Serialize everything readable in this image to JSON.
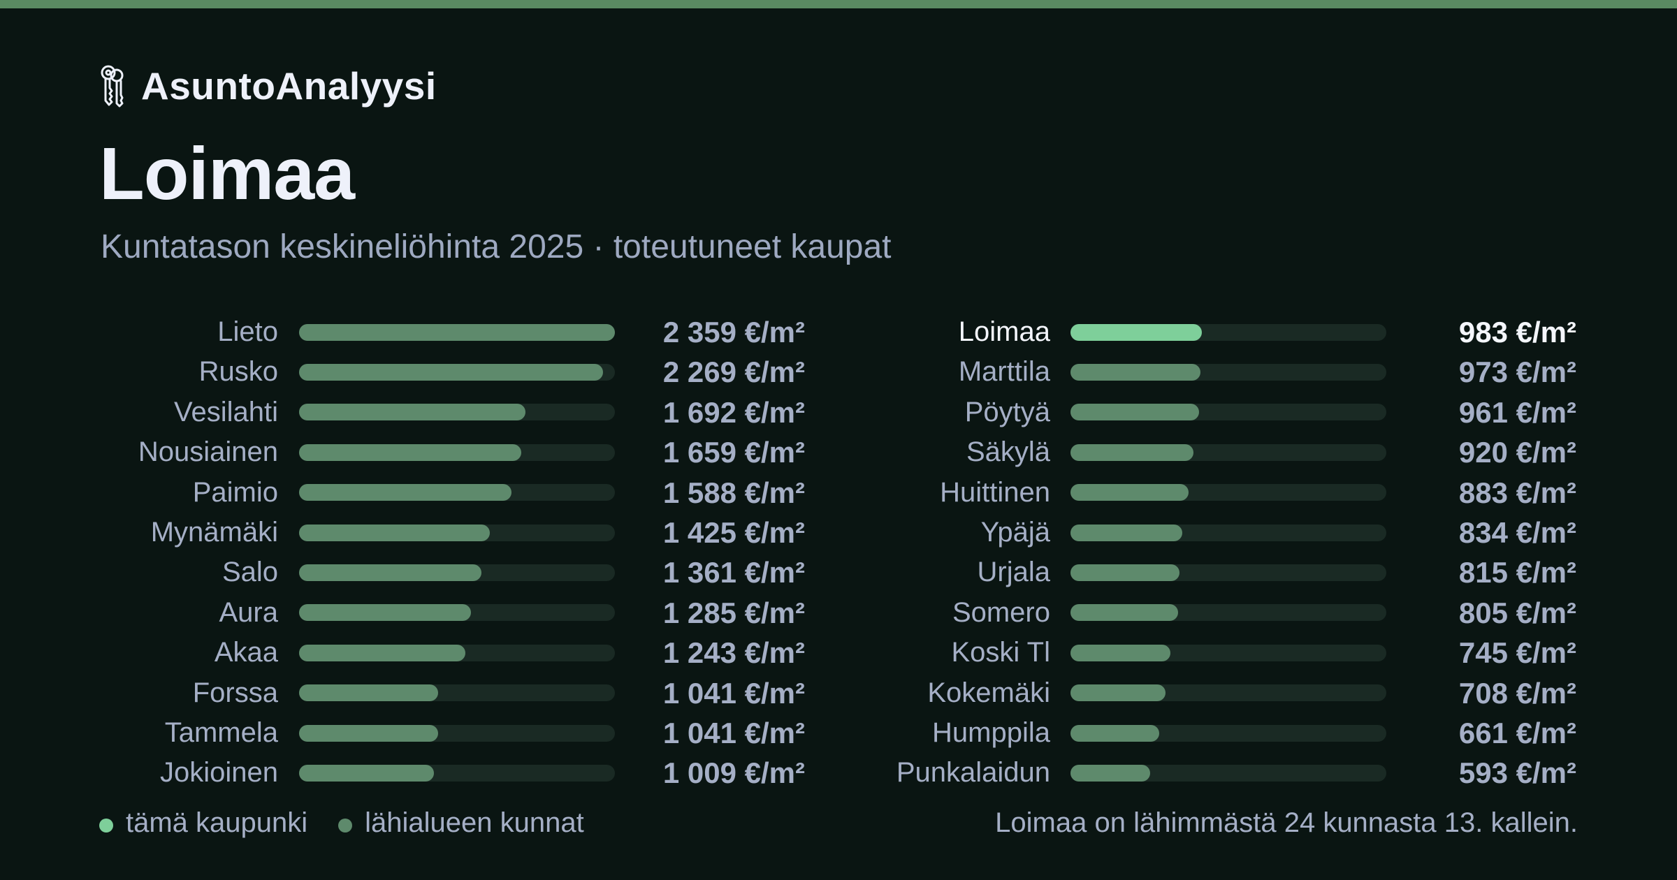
{
  "brand": {
    "name": "AsuntoAnalyysi",
    "icon": "keys-icon"
  },
  "header": {
    "title": "Loimaa",
    "subtitle": "Kuntatason keskineliöhinta 2025 · toteutuneet kaupat"
  },
  "colors": {
    "accent": "#7ecf9a",
    "bar": "#5e8a6c",
    "track": "#1a2a24",
    "background": "#0a1512",
    "topbar": "#5a8a62"
  },
  "chart_data": {
    "type": "bar",
    "orientation": "horizontal",
    "unit": "€/m²",
    "max": 2359,
    "highlight": "Loimaa",
    "columns": [
      {
        "items": [
          {
            "name": "Lieto",
            "value": 2359,
            "label": "2 359 €/m²"
          },
          {
            "name": "Rusko",
            "value": 2269,
            "label": "2 269 €/m²"
          },
          {
            "name": "Vesilahti",
            "value": 1692,
            "label": "1 692 €/m²"
          },
          {
            "name": "Nousiainen",
            "value": 1659,
            "label": "1 659 €/m²"
          },
          {
            "name": "Paimio",
            "value": 1588,
            "label": "1 588 €/m²"
          },
          {
            "name": "Mynämäki",
            "value": 1425,
            "label": "1 425 €/m²"
          },
          {
            "name": "Salo",
            "value": 1361,
            "label": "1 361 €/m²"
          },
          {
            "name": "Aura",
            "value": 1285,
            "label": "1 285 €/m²"
          },
          {
            "name": "Akaa",
            "value": 1243,
            "label": "1 243 €/m²"
          },
          {
            "name": "Forssa",
            "value": 1041,
            "label": "1 041 €/m²"
          },
          {
            "name": "Tammela",
            "value": 1041,
            "label": "1 041 €/m²"
          },
          {
            "name": "Jokioinen",
            "value": 1009,
            "label": "1 009 €/m²"
          }
        ]
      },
      {
        "items": [
          {
            "name": "Loimaa",
            "value": 983,
            "label": "983 €/m²"
          },
          {
            "name": "Marttila",
            "value": 973,
            "label": "973 €/m²"
          },
          {
            "name": "Pöytyä",
            "value": 961,
            "label": "961 €/m²"
          },
          {
            "name": "Säkylä",
            "value": 920,
            "label": "920 €/m²"
          },
          {
            "name": "Huittinen",
            "value": 883,
            "label": "883 €/m²"
          },
          {
            "name": "Ypäjä",
            "value": 834,
            "label": "834 €/m²"
          },
          {
            "name": "Urjala",
            "value": 815,
            "label": "815 €/m²"
          },
          {
            "name": "Somero",
            "value": 805,
            "label": "805 €/m²"
          },
          {
            "name": "Koski Tl",
            "value": 745,
            "label": "745 €/m²"
          },
          {
            "name": "Kokemäki",
            "value": 708,
            "label": "708 €/m²"
          },
          {
            "name": "Humppila",
            "value": 661,
            "label": "661 €/m²"
          },
          {
            "name": "Punkalaidun",
            "value": 593,
            "label": "593 €/m²"
          }
        ]
      }
    ],
    "legend": [
      {
        "label": "tämä kaupunki",
        "color": "#7ecf9a"
      },
      {
        "label": "lähialueen kunnat",
        "color": "#5e8a6c"
      }
    ]
  },
  "footnote": "Loimaa on lähimmästä 24 kunnasta 13. kallein."
}
